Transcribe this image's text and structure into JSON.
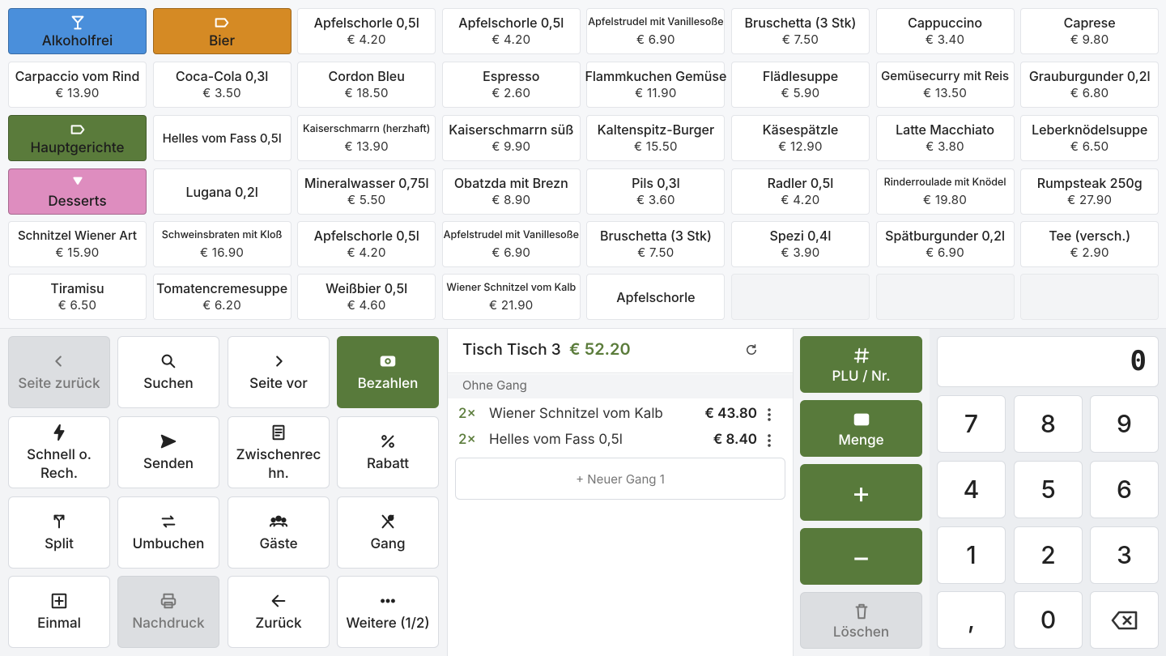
{
  "product_grid": {
    "tiles": [
      {
        "label": "Alkoholfrei",
        "color": "#4a8fdb"
      },
      {
        "label": "Bier",
        "color": "#d58a24"
      },
      {
        "label": "Apfelschorle 0,5l",
        "price": "€ 4.20"
      },
      {
        "label": "Apfelschorle 0,5l",
        "price": "€ 4.20"
      },
      {
        "label": "Apfelstrudel mit Vanillesoße",
        "price": "€ 6.90"
      },
      {
        "label": "Bruschetta (3 Stk)",
        "price": "€ 7.50"
      },
      {
        "label": "Cappuccino",
        "price": "€ 3.40"
      },
      {
        "label": "Caprese",
        "price": "€ 9.80"
      },
      {
        "label": "Carpaccio vom Rind",
        "price": "€ 13.90"
      },
      {
        "label": "Coca-Cola 0,3l",
        "price": "€ 3.50"
      },
      {
        "label": "Cordon Bleu",
        "price": "€ 18.50"
      },
      {
        "label": "Espresso",
        "price": "€ 2.60"
      },
      {
        "label": "Flammkuchen Gemüse",
        "price": "€ 11.90"
      },
      {
        "label": "Flädlesuppe",
        "price": "€ 5.90"
      },
      {
        "label": "Gemüsecurry mit Reis",
        "price": "€ 13.50"
      },
      {
        "label": "Grauburgunder 0,2l",
        "price": "€ 6.80"
      },
      {
        "label": "Hauptgerichte",
        "color": "#5a7b3b"
      },
      {
        "label": "Helles vom Fass 0,5l"
      },
      {
        "label": "Kaiserschmarrn (herzhaft)",
        "price": "€ 13.90"
      },
      {
        "label": "Kaiserschmarrn süß",
        "price": "€ 9.90"
      },
      {
        "label": "Kaltenspitz-Burger",
        "price": "€ 15.50"
      },
      {
        "label": "Käsespätzle",
        "price": "€ 12.90"
      },
      {
        "label": "Latte Macchiato",
        "price": "€ 3.80"
      },
      {
        "label": "Leberknödelsuppe",
        "price": "€ 6.50"
      },
      {
        "label": "Desserts",
        "color": "#de8dbf"
      },
      {
        "label": "Lugana 0,2l"
      },
      {
        "label": "Mineralwasser 0,75l",
        "price": "€ 5.50"
      },
      {
        "label": "Obatzda mit Brezn",
        "price": "€ 8.90"
      },
      {
        "label": "Pils 0,3l",
        "price": "€ 3.60"
      },
      {
        "label": "Radler 0,5l",
        "price": "€ 4.20"
      },
      {
        "label": "Rinderroulade mit Knödel",
        "price": "€ 19.80"
      },
      {
        "label": "Rumpsteak 250g",
        "price": "€ 27.90"
      },
      {
        "label": "Schnitzel Wiener Art",
        "price": "€ 15.90"
      },
      {
        "label": "Schweinsbraten mit Kloß",
        "price": "€ 16.90"
      },
      {
        "label": "Apfelschorle 0,5l",
        "price": "€ 4.20"
      },
      {
        "label": "Apfelstrudel mit Vanillesoße",
        "price": "€ 6.90"
      },
      {
        "label": "Bruschetta (3 Stk)",
        "price": "€ 7.50"
      },
      {
        "label": "Spezi 0,4l",
        "price": "€ 3.90"
      },
      {
        "label": "Spätburgunder 0,2l",
        "price": "€ 6.90"
      },
      {
        "label": "Tee (versch.)",
        "price": "€ 2.90"
      },
      {
        "label": "Tiramisu",
        "price": "€ 6.50"
      },
      {
        "label": "Tomatencremesuppe",
        "price": "€ 6.20"
      },
      {
        "label": "Weißbier 0,5l",
        "price": "€ 4.60"
      },
      {
        "label": "Wiener Schnitzel vom Kalb",
        "price": "€ 21.90"
      },
      {
        "label": "Apfelschorle"
      },
      null,
      null,
      null
    ]
  },
  "function_buttons": [
    {
      "label": "Seite zurück",
      "disabled": true
    },
    {
      "label": "Suchen"
    },
    {
      "label": "Seite vor"
    },
    {
      "label": "Bezahlen",
      "color": "#587a3b"
    },
    {
      "label": "Schnell o. Rech."
    },
    {
      "label": "Senden"
    },
    {
      "label": "Zwischenrechn."
    },
    {
      "label": "Rabatt"
    },
    {
      "label": "Split"
    },
    {
      "label": "Umbuchen"
    },
    {
      "label": "Gäste"
    },
    {
      "label": "Gang"
    },
    {
      "label": "Einmal"
    },
    {
      "label": "Nachdruck",
      "disabled": true
    },
    {
      "label": "Zurück"
    },
    {
      "label": "Weitere (1/2)"
    }
  ],
  "order": {
    "table": "Tisch Tisch 3",
    "total": "€ 52.20",
    "course": "Ohne Gang",
    "items": [
      {
        "qty": "2×",
        "name": "Wiener Schnitzel vom Kalb",
        "price": "€ 43.80"
      },
      {
        "qty": "2×",
        "name": "Helles vom Fass 0,5l",
        "price": "€ 8.40"
      }
    ],
    "new_course": "+ Neuer Gang 1"
  },
  "action_buttons": [
    {
      "label": "PLU / Nr."
    },
    {
      "label": "Menge"
    },
    {
      "label": "+"
    },
    {
      "label": "−"
    },
    {
      "label": "Löschen",
      "disabled": true
    }
  ],
  "numpad": {
    "display": "0",
    "keys": [
      "7",
      "8",
      "9",
      "4",
      "5",
      "6",
      "1",
      "2",
      "3",
      ",",
      "0",
      null
    ]
  }
}
